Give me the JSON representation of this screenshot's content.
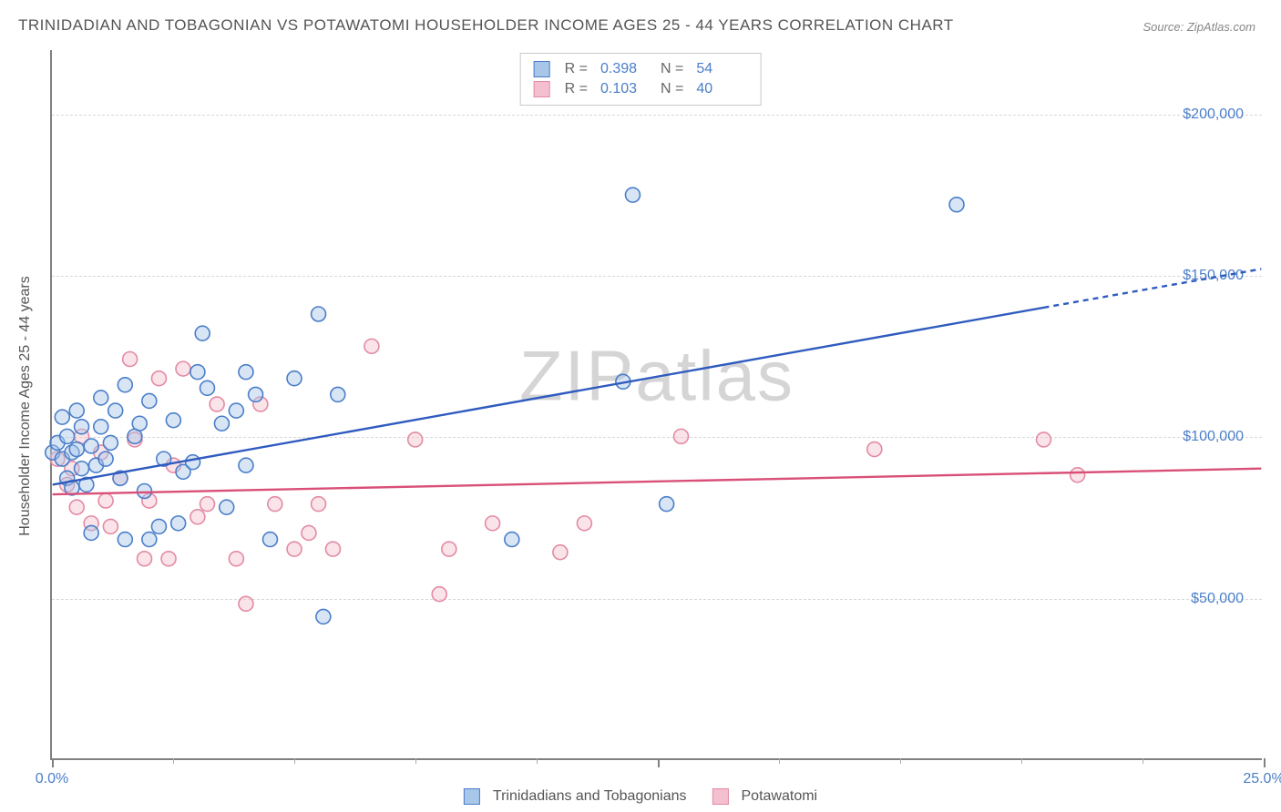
{
  "title": "TRINIDADIAN AND TOBAGONIAN VS POTAWATOMI HOUSEHOLDER INCOME AGES 25 - 44 YEARS CORRELATION CHART",
  "source": "Source: ZipAtlas.com",
  "watermark": "ZIPatlas",
  "ylabel": "Householder Income Ages 25 - 44 years",
  "chart": {
    "type": "scatter",
    "background": "#ffffff",
    "grid_color": "#d8d8d8",
    "axis_color": "#808080",
    "tick_label_color": "#4a7ec9",
    "xlim": [
      0,
      25
    ],
    "ylim": [
      0,
      220000
    ],
    "x_ticks_major": [
      0,
      12.5,
      25
    ],
    "x_tick_labels": {
      "0": "0.0%",
      "25": "25.0%"
    },
    "x_ticks_minor": [
      2.5,
      5,
      7.5,
      10,
      15,
      17.5,
      20,
      22.5
    ],
    "y_gridlines": [
      50000,
      100000,
      150000,
      200000
    ],
    "y_tick_labels": {
      "50000": "$50,000",
      "100000": "$100,000",
      "150000": "$150,000",
      "200000": "$200,000"
    },
    "marker_radius": 8,
    "marker_stroke_width": 1.6,
    "marker_fill_opacity": 0.45,
    "trend_line_width": 2.4,
    "trend_dash": "6,5"
  },
  "series": {
    "blue": {
      "label": "Trinidadians and Tobagonians",
      "stroke": "#4a7ec9",
      "fill": "#a8c6e8",
      "line_color": "#2f5bbf",
      "R_label": "R =",
      "R": "0.398",
      "N_label": "N =",
      "N": "54",
      "trend": {
        "x1": 0.0,
        "y1": 85000,
        "x2": 20.5,
        "y2": 140000,
        "x2_dash": 25.0,
        "y2_dash": 152000
      },
      "points": [
        [
          0.0,
          95000
        ],
        [
          0.1,
          98000
        ],
        [
          0.2,
          93000
        ],
        [
          0.2,
          106000
        ],
        [
          0.3,
          87000
        ],
        [
          0.3,
          100000
        ],
        [
          0.4,
          95000
        ],
        [
          0.4,
          84000
        ],
        [
          0.5,
          108000
        ],
        [
          0.5,
          96000
        ],
        [
          0.6,
          90000
        ],
        [
          0.6,
          103000
        ],
        [
          0.7,
          85000
        ],
        [
          0.8,
          97000
        ],
        [
          0.8,
          70000
        ],
        [
          0.9,
          91000
        ],
        [
          1.0,
          112000
        ],
        [
          1.0,
          103000
        ],
        [
          1.1,
          93000
        ],
        [
          1.2,
          98000
        ],
        [
          1.3,
          108000
        ],
        [
          1.4,
          87000
        ],
        [
          1.5,
          68000
        ],
        [
          1.5,
          116000
        ],
        [
          1.7,
          100000
        ],
        [
          1.8,
          104000
        ],
        [
          1.9,
          83000
        ],
        [
          2.0,
          111000
        ],
        [
          2.0,
          68000
        ],
        [
          2.2,
          72000
        ],
        [
          2.3,
          93000
        ],
        [
          2.5,
          105000
        ],
        [
          2.6,
          73000
        ],
        [
          2.7,
          89000
        ],
        [
          2.9,
          92000
        ],
        [
          3.0,
          120000
        ],
        [
          3.1,
          132000
        ],
        [
          3.2,
          115000
        ],
        [
          3.5,
          104000
        ],
        [
          3.6,
          78000
        ],
        [
          3.8,
          108000
        ],
        [
          4.0,
          91000
        ],
        [
          4.0,
          120000
        ],
        [
          4.2,
          113000
        ],
        [
          4.5,
          68000
        ],
        [
          5.0,
          118000
        ],
        [
          5.5,
          138000
        ],
        [
          5.6,
          44000
        ],
        [
          5.9,
          113000
        ],
        [
          9.5,
          68000
        ],
        [
          11.8,
          117000
        ],
        [
          12.0,
          175000
        ],
        [
          12.7,
          79000
        ],
        [
          18.7,
          172000
        ]
      ]
    },
    "pink": {
      "label": "Potawatomi",
      "stroke": "#e38aa3",
      "fill": "#f4c0cf",
      "line_color": "#d94f78",
      "R_label": "R =",
      "R": "0.103",
      "N_label": "N =",
      "N": "40",
      "trend": {
        "x1": 0.0,
        "y1": 82000,
        "x2": 25.0,
        "y2": 90000
      },
      "points": [
        [
          0.1,
          93000
        ],
        [
          0.3,
          85000
        ],
        [
          0.4,
          90000
        ],
        [
          0.5,
          78000
        ],
        [
          0.6,
          100000
        ],
        [
          0.8,
          73000
        ],
        [
          1.0,
          95000
        ],
        [
          1.1,
          80000
        ],
        [
          1.2,
          72000
        ],
        [
          1.4,
          87000
        ],
        [
          1.6,
          124000
        ],
        [
          1.7,
          99000
        ],
        [
          1.9,
          62000
        ],
        [
          2.0,
          80000
        ],
        [
          2.2,
          118000
        ],
        [
          2.4,
          62000
        ],
        [
          2.5,
          91000
        ],
        [
          2.7,
          121000
        ],
        [
          3.0,
          75000
        ],
        [
          3.2,
          79000
        ],
        [
          3.4,
          110000
        ],
        [
          3.8,
          62000
        ],
        [
          4.0,
          48000
        ],
        [
          4.3,
          110000
        ],
        [
          4.6,
          79000
        ],
        [
          5.0,
          65000
        ],
        [
          5.3,
          70000
        ],
        [
          5.5,
          79000
        ],
        [
          5.8,
          65000
        ],
        [
          6.6,
          128000
        ],
        [
          7.5,
          99000
        ],
        [
          8.0,
          51000
        ],
        [
          8.2,
          65000
        ],
        [
          9.1,
          73000
        ],
        [
          10.5,
          64000
        ],
        [
          11.0,
          73000
        ],
        [
          13.0,
          100000
        ],
        [
          17.0,
          96000
        ],
        [
          20.5,
          99000
        ],
        [
          21.2,
          88000
        ]
      ]
    }
  }
}
